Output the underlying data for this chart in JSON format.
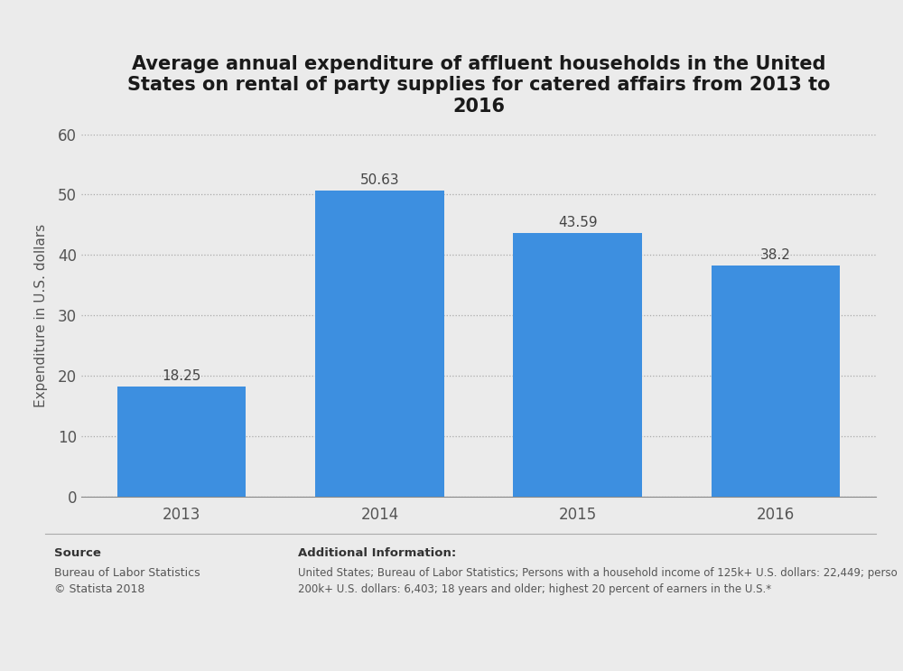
{
  "title": "Average annual expenditure of affluent households in the United\nStates on rental of party supplies for catered affairs from 2013 to\n2016",
  "categories": [
    "2013",
    "2014",
    "2015",
    "2016"
  ],
  "values": [
    18.25,
    50.63,
    43.59,
    38.2
  ],
  "bar_color": "#3d8fe0",
  "ylabel": "Expenditure in U.S. dollars",
  "ylim": [
    0,
    60
  ],
  "yticks": [
    0,
    10,
    20,
    30,
    40,
    50,
    60
  ],
  "background_color": "#ebebeb",
  "plot_bg_color": "#ebebeb",
  "title_fontsize": 15,
  "label_fontsize": 11,
  "tick_fontsize": 12,
  "bar_value_fontsize": 11,
  "source_label": "Source",
  "source_text": "Bureau of Labor Statistics\n© Statista 2018",
  "additional_label": "Additional Information:",
  "additional_text": "United States; Bureau of Labor Statistics; Persons with a household income of 125k+ U.S. dollars: 22,449; perso\n200k+ U.S. dollars: 6,403; 18 years and older; highest 20 percent of earners in the U.S.*"
}
